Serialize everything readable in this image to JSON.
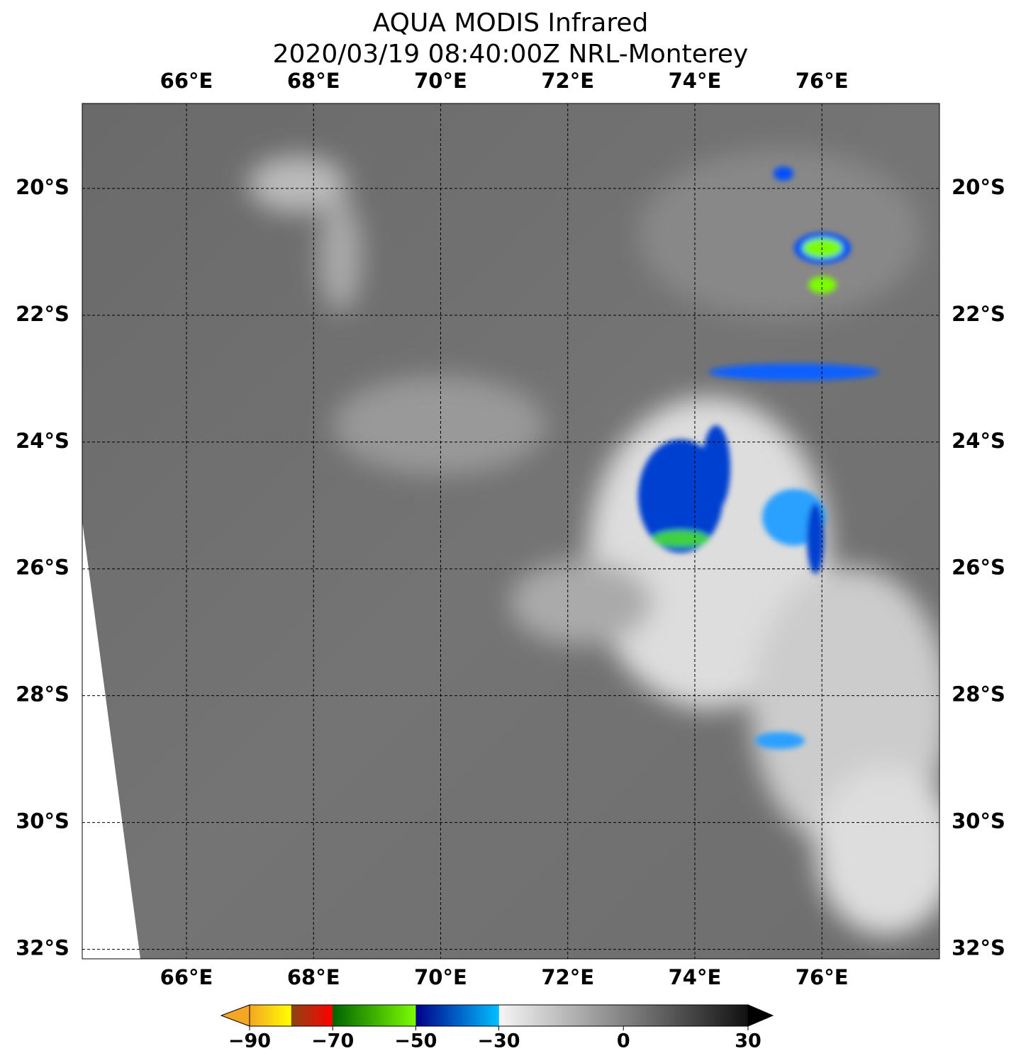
{
  "header": {
    "title": "AQUA MODIS Infrared",
    "subtitle": "2020/03/19 08:40:00Z NRL-Monterey"
  },
  "map": {
    "xlim": [
      64.36,
      77.85
    ],
    "ylim": [
      -32.15,
      -18.66
    ],
    "xticks": [
      {
        "value": 66,
        "label": "66°E"
      },
      {
        "value": 68,
        "label": "68°E"
      },
      {
        "value": 70,
        "label": "70°E"
      },
      {
        "value": 72,
        "label": "72°E"
      },
      {
        "value": 74,
        "label": "74°E"
      },
      {
        "value": 76,
        "label": "76°E"
      }
    ],
    "yticks": [
      {
        "value": -20,
        "label": "20°S"
      },
      {
        "value": -22,
        "label": "22°S"
      },
      {
        "value": -24,
        "label": "24°S"
      },
      {
        "value": -26,
        "label": "26°S"
      },
      {
        "value": -28,
        "label": "28°S"
      },
      {
        "value": -30,
        "label": "30°S"
      },
      {
        "value": -32,
        "label": "32°S"
      }
    ]
  },
  "colorbar": {
    "range": [
      -90,
      30
    ],
    "ticks": [
      {
        "value": -90,
        "label": "−90"
      },
      {
        "value": -70,
        "label": "−70"
      },
      {
        "value": -50,
        "label": "−50"
      },
      {
        "value": -30,
        "label": "−30"
      },
      0,
      30
    ]
  }
}
